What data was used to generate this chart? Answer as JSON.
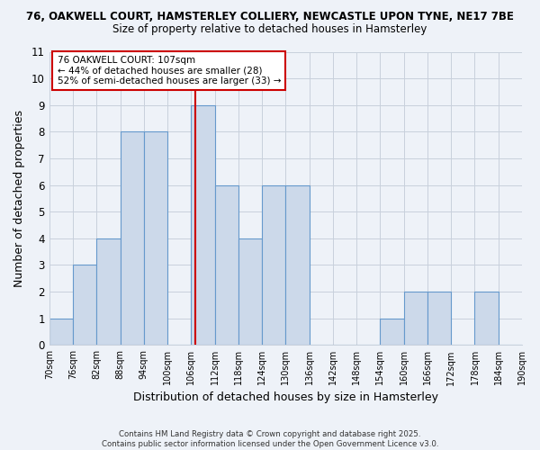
{
  "title_line1": "76, OAKWELL COURT, HAMSTERLEY COLLIERY, NEWCASTLE UPON TYNE, NE17 7BE",
  "title_line2": "Size of property relative to detached houses in Hamsterley",
  "xlabel": "Distribution of detached houses by size in Hamsterley",
  "ylabel": "Number of detached properties",
  "bin_edges": [
    70,
    76,
    82,
    88,
    94,
    100,
    106,
    112,
    118,
    124,
    130,
    136,
    142,
    148,
    154,
    160,
    166,
    172,
    178,
    184,
    190
  ],
  "counts": [
    1,
    3,
    4,
    8,
    8,
    0,
    9,
    6,
    4,
    6,
    6,
    0,
    0,
    0,
    1,
    2,
    2,
    0,
    2,
    0
  ],
  "bar_facecolor": "#ccd9ea",
  "bar_edgecolor": "#6699cc",
  "grid_color": "#c8d0dc",
  "property_value": 107,
  "vline_color": "#cc0000",
  "annotation_text": "76 OAKWELL COURT: 107sqm\n← 44% of detached houses are smaller (28)\n52% of semi-detached houses are larger (33) →",
  "annotation_box_edgecolor": "#cc0000",
  "ylim": [
    0,
    11
  ],
  "yticks": [
    0,
    1,
    2,
    3,
    4,
    5,
    6,
    7,
    8,
    9,
    10,
    11
  ],
  "xtick_labels": [
    "70sqm",
    "76sqm",
    "82sqm",
    "88sqm",
    "94sqm",
    "100sqm",
    "106sqm",
    "112sqm",
    "118sqm",
    "124sqm",
    "130sqm",
    "136sqm",
    "142sqm",
    "148sqm",
    "154sqm",
    "160sqm",
    "166sqm",
    "172sqm",
    "178sqm",
    "184sqm",
    "190sqm"
  ],
  "footer_text": "Contains HM Land Registry data © Crown copyright and database right 2025.\nContains public sector information licensed under the Open Government Licence v3.0.",
  "bg_color": "#eef2f8"
}
